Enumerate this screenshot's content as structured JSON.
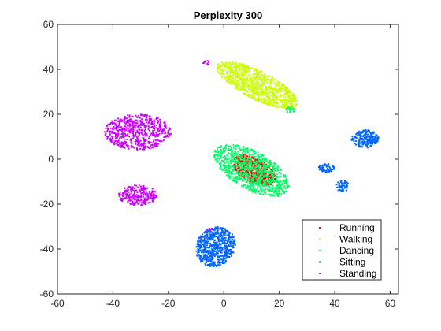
{
  "chart_data": {
    "type": "scatter",
    "title": "Perplexity 300",
    "xlabel": "",
    "ylabel": "",
    "xlim": [
      -60,
      63
    ],
    "ylim": [
      -60,
      60
    ],
    "xticks": [
      -60,
      -40,
      -20,
      0,
      20,
      40,
      60
    ],
    "yticks": [
      -60,
      -40,
      -20,
      0,
      20,
      40,
      60
    ],
    "grid": false,
    "legend_position": "bottom-right",
    "series": [
      {
        "name": "Running",
        "color": "#ff0000",
        "clusters": [
          {
            "shape": "ellipse",
            "cx": 11,
            "cy": -5,
            "rx": 9,
            "ry": 5,
            "angle": -38,
            "count": 520
          }
        ]
      },
      {
        "name": "Walking",
        "color": "#ccff00",
        "clusters": [
          {
            "shape": "ellipse",
            "cx": 12,
            "cy": 33,
            "rx": 17,
            "ry": 6,
            "angle": -33,
            "count": 900
          }
        ]
      },
      {
        "name": "Dancing",
        "color": "#00ff66",
        "clusters": [
          {
            "shape": "ellipse",
            "cx": 10,
            "cy": -5,
            "rx": 16,
            "ry": 8,
            "angle": -38,
            "count": 900
          },
          {
            "shape": "ellipse",
            "cx": 24,
            "cy": 22,
            "rx": 1.5,
            "ry": 1.5,
            "angle": 0,
            "count": 20
          }
        ]
      },
      {
        "name": "Sitting",
        "color": "#0066ff",
        "clusters": [
          {
            "shape": "ellipse",
            "cx": -3,
            "cy": -39,
            "rx": 7,
            "ry": 9,
            "angle": -15,
            "count": 620
          },
          {
            "shape": "ellipse",
            "cx": 51,
            "cy": 9,
            "rx": 5,
            "ry": 4,
            "angle": 0,
            "count": 200
          },
          {
            "shape": "ellipse",
            "cx": 37,
            "cy": -4,
            "rx": 3,
            "ry": 2,
            "angle": 0,
            "count": 60
          },
          {
            "shape": "ellipse",
            "cx": 43,
            "cy": -12,
            "rx": 2.5,
            "ry": 2.5,
            "angle": 0,
            "count": 50
          }
        ]
      },
      {
        "name": "Standing",
        "color": "#cc00ff",
        "clusters": [
          {
            "shape": "ellipse",
            "cx": -31,
            "cy": 12,
            "rx": 12,
            "ry": 8,
            "angle": 0,
            "count": 560
          },
          {
            "shape": "ellipse",
            "cx": -31,
            "cy": -16,
            "rx": 7,
            "ry": 4.5,
            "angle": 0,
            "count": 240
          },
          {
            "shape": "ellipse",
            "cx": -6,
            "cy": 43,
            "rx": 1.5,
            "ry": 1,
            "angle": 0,
            "count": 10
          },
          {
            "shape": "ellipse",
            "cx": -5,
            "cy": -31,
            "rx": 1,
            "ry": 1,
            "angle": 0,
            "count": 4
          }
        ]
      }
    ]
  }
}
